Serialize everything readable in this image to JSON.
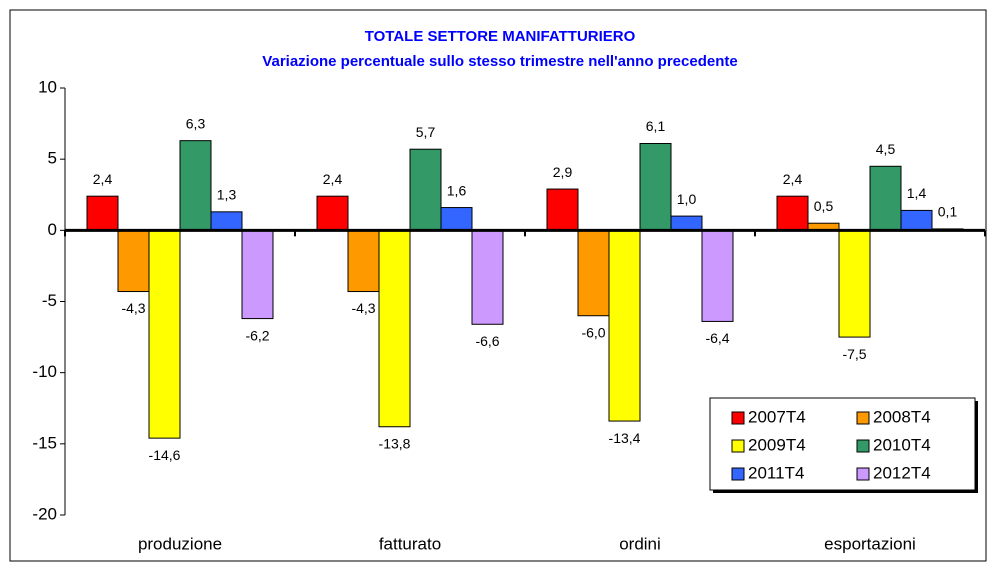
{
  "chart_data": {
    "type": "bar",
    "title": "TOTALE SETTORE MANIFATTURIERO",
    "subtitle": "Variazione percentuale sullo stesso trimestre nell'anno precedente",
    "categories": [
      "produzione",
      "fatturato",
      "ordini",
      "esportazioni"
    ],
    "series": [
      {
        "name": "2007T4",
        "color": "#ff0000",
        "values": [
          2.4,
          2.4,
          2.9,
          2.4
        ],
        "value_labels": [
          "2,4",
          "2,4",
          "2,9",
          "2,4"
        ]
      },
      {
        "name": "2008T4",
        "color": "#ff9900",
        "values": [
          -4.3,
          -4.3,
          -6.0,
          0.5
        ],
        "value_labels": [
          "-4,3",
          "-4,3",
          "-6,0",
          "0,5"
        ]
      },
      {
        "name": "2009T4",
        "color": "#ffff00",
        "values": [
          -14.6,
          -13.8,
          -13.4,
          -7.5
        ],
        "value_labels": [
          "-14,6",
          "-13,8",
          "-13,4",
          "-7,5"
        ]
      },
      {
        "name": "2010T4",
        "color": "#339966",
        "values": [
          6.3,
          5.7,
          6.1,
          4.5
        ],
        "value_labels": [
          "6,3",
          "5,7",
          "6,1",
          "4,5"
        ]
      },
      {
        "name": "2011T4",
        "color": "#3366ff",
        "values": [
          1.3,
          1.6,
          1.0,
          1.4
        ],
        "value_labels": [
          "1,3",
          "1,6",
          "1,0",
          "1,4"
        ]
      },
      {
        "name": "2012T4",
        "color": "#cc99ff",
        "values": [
          -6.2,
          -6.6,
          -6.4,
          0.1
        ],
        "value_labels": [
          "-6,2",
          "-6,6",
          "-6,4",
          "0,1"
        ]
      }
    ],
    "ylim": [
      -20,
      10
    ],
    "yticks": [
      10,
      5,
      0,
      -5,
      -10,
      -15,
      -20
    ],
    "legend": "bottom-right"
  }
}
